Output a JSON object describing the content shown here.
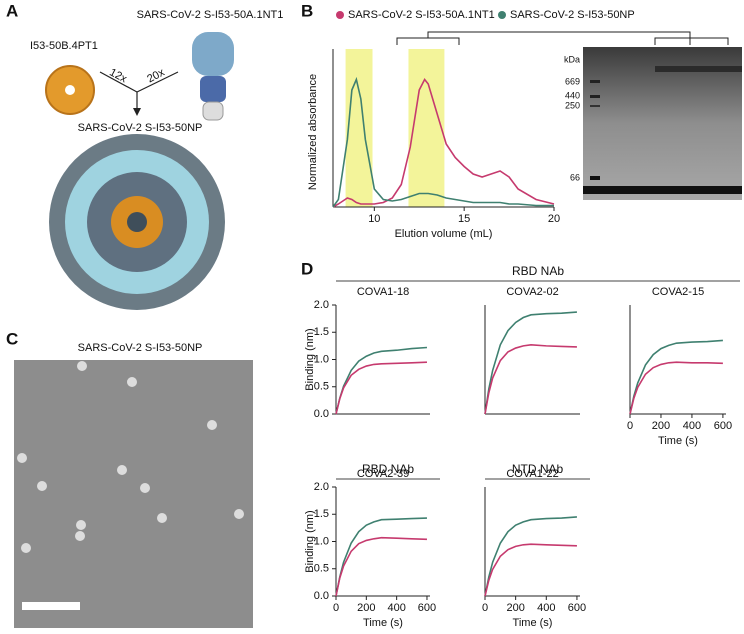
{
  "figure": {
    "panel_labels": [
      "A",
      "B",
      "C",
      "D"
    ],
    "panel_a": {
      "top_label": "SARS-CoV-2 S-I53-50A.1NT1",
      "component_label": "I53-50B.4PT1",
      "ratio_left": "12x",
      "ratio_right": "20x",
      "product_label": "SARS-CoV-2 S-I53-50NP"
    },
    "panel_b_gel": {
      "unit": "kDa",
      "markers": [
        669,
        440,
        250,
        66
      ]
    },
    "panel_c": {
      "title": "SARS-CoV-2 S-I53-50NP"
    },
    "panel_d": {
      "group_labels": [
        "RBD NAb",
        "RBD NAb",
        "NTD NAb"
      ]
    }
  },
  "chart_data": [
    {
      "type": "line",
      "xlabel": "Elution volume (mL)",
      "ylabel": "Normalized absorbance",
      "x": [
        7.7,
        8,
        8.5,
        8.75,
        9,
        9.25,
        9.5,
        10,
        10.5,
        11,
        11.5,
        12,
        12.5,
        12.8,
        13,
        13.5,
        14,
        14.5,
        15,
        15.5,
        16,
        16.5,
        17,
        17.5,
        18,
        19,
        20
      ],
      "xlim": [
        7.7,
        20
      ],
      "xticks": [
        10,
        15,
        20
      ],
      "ylim": [
        0,
        1
      ],
      "highlights": [
        [
          8.4,
          9.9
        ],
        [
          11.9,
          13.9
        ]
      ],
      "highlight_color": "#f3f49a",
      "series": [
        {
          "name": "SARS-CoV-2 S-I53-50A.1NT1",
          "color": "#c63a6e",
          "values": [
            0.0,
            0.02,
            0.06,
            0.05,
            0.03,
            0.02,
            0.02,
            0.02,
            0.03,
            0.06,
            0.15,
            0.4,
            0.78,
            0.85,
            0.82,
            0.62,
            0.42,
            0.33,
            0.27,
            0.22,
            0.2,
            0.22,
            0.24,
            0.2,
            0.12,
            0.05,
            0.02
          ]
        },
        {
          "name": "SARS-CoV-2 S-I53-50NP",
          "color": "#3f8070",
          "values": [
            0.0,
            0.05,
            0.45,
            0.78,
            0.85,
            0.72,
            0.45,
            0.12,
            0.05,
            0.04,
            0.05,
            0.07,
            0.09,
            0.09,
            0.09,
            0.08,
            0.06,
            0.05,
            0.04,
            0.03,
            0.03,
            0.03,
            0.03,
            0.02,
            0.02,
            0.01,
            0.01
          ]
        }
      ]
    },
    {
      "type": "line",
      "title": "COVA1-18",
      "ylabel": "Binding (nm)",
      "x": [
        0,
        25,
        50,
        100,
        150,
        200,
        250,
        300,
        400,
        500,
        600
      ],
      "xlim": [
        0,
        620
      ],
      "ylim": [
        0,
        2
      ],
      "yticks": [
        {
          "value": 0,
          "label": "0.0"
        },
        {
          "value": 0.5,
          "label": "0.5"
        },
        {
          "value": 1,
          "label": "1.0"
        },
        {
          "value": 1.5,
          "label": "1.5"
        },
        {
          "value": 2,
          "label": "2.0"
        }
      ],
      "series": [
        {
          "color": "#3f8070",
          "values": [
            0,
            0.29,
            0.51,
            0.8,
            0.97,
            1.06,
            1.12,
            1.15,
            1.17,
            1.2,
            1.22
          ]
        },
        {
          "color": "#c63a6e",
          "values": [
            0,
            0.28,
            0.48,
            0.71,
            0.82,
            0.88,
            0.91,
            0.92,
            0.93,
            0.94,
            0.95
          ]
        }
      ]
    },
    {
      "type": "line",
      "title": "COVA2-02",
      "x": [
        0,
        25,
        50,
        100,
        150,
        200,
        250,
        300,
        400,
        500,
        600
      ],
      "xlim": [
        0,
        620
      ],
      "ylim": [
        0,
        2
      ],
      "series": [
        {
          "color": "#3f8070",
          "values": [
            0,
            0.46,
            0.8,
            1.27,
            1.53,
            1.68,
            1.77,
            1.82,
            1.84,
            1.85,
            1.87
          ]
        },
        {
          "color": "#c63a6e",
          "values": [
            0,
            0.39,
            0.66,
            0.98,
            1.14,
            1.21,
            1.25,
            1.27,
            1.25,
            1.24,
            1.23
          ]
        }
      ]
    },
    {
      "type": "line",
      "title": "COVA2-15",
      "xlabel": "Time (s)",
      "x": [
        0,
        25,
        50,
        100,
        150,
        200,
        250,
        300,
        400,
        500,
        600
      ],
      "xlim": [
        0,
        620
      ],
      "xticks": [
        0,
        200,
        400,
        600
      ],
      "ylim": [
        0,
        2
      ],
      "series": [
        {
          "color": "#3f8070",
          "values": [
            0,
            0.33,
            0.57,
            0.9,
            1.09,
            1.2,
            1.26,
            1.3,
            1.32,
            1.33,
            1.35
          ]
        },
        {
          "color": "#c63a6e",
          "values": [
            0,
            0.29,
            0.49,
            0.73,
            0.85,
            0.91,
            0.94,
            0.95,
            0.94,
            0.94,
            0.93
          ]
        }
      ]
    },
    {
      "type": "line",
      "title": "COVA2-39",
      "xlabel": "Time (s)",
      "ylabel": "Binding (nm)",
      "x": [
        0,
        25,
        50,
        100,
        150,
        200,
        250,
        300,
        400,
        500,
        600
      ],
      "xlim": [
        0,
        620
      ],
      "xticks": [
        0,
        200,
        400,
        600
      ],
      "ylim": [
        0,
        2
      ],
      "yticks": [
        {
          "value": 0,
          "label": "0.0"
        },
        {
          "value": 0.5,
          "label": "0.5"
        },
        {
          "value": 1,
          "label": "1.0"
        },
        {
          "value": 1.5,
          "label": "1.5"
        },
        {
          "value": 2,
          "label": "2.0"
        }
      ],
      "series": [
        {
          "color": "#3f8070",
          "values": [
            0,
            0.35,
            0.62,
            0.97,
            1.18,
            1.3,
            1.36,
            1.4,
            1.41,
            1.42,
            1.43
          ]
        },
        {
          "color": "#c63a6e",
          "values": [
            0,
            0.33,
            0.55,
            0.82,
            0.96,
            1.02,
            1.05,
            1.07,
            1.06,
            1.05,
            1.04
          ]
        }
      ]
    },
    {
      "type": "line",
      "title": "COVA1-22",
      "xlabel": "Time (s)",
      "x": [
        0,
        25,
        50,
        100,
        150,
        200,
        250,
        300,
        400,
        500,
        600
      ],
      "xlim": [
        0,
        620
      ],
      "xticks": [
        0,
        200,
        400,
        600
      ],
      "ylim": [
        0,
        2
      ],
      "series": [
        {
          "color": "#3f8070",
          "values": [
            0,
            0.35,
            0.62,
            0.97,
            1.18,
            1.3,
            1.36,
            1.4,
            1.42,
            1.43,
            1.45
          ]
        },
        {
          "color": "#c63a6e",
          "values": [
            0,
            0.29,
            0.49,
            0.73,
            0.85,
            0.91,
            0.94,
            0.95,
            0.94,
            0.93,
            0.92
          ]
        }
      ]
    }
  ]
}
